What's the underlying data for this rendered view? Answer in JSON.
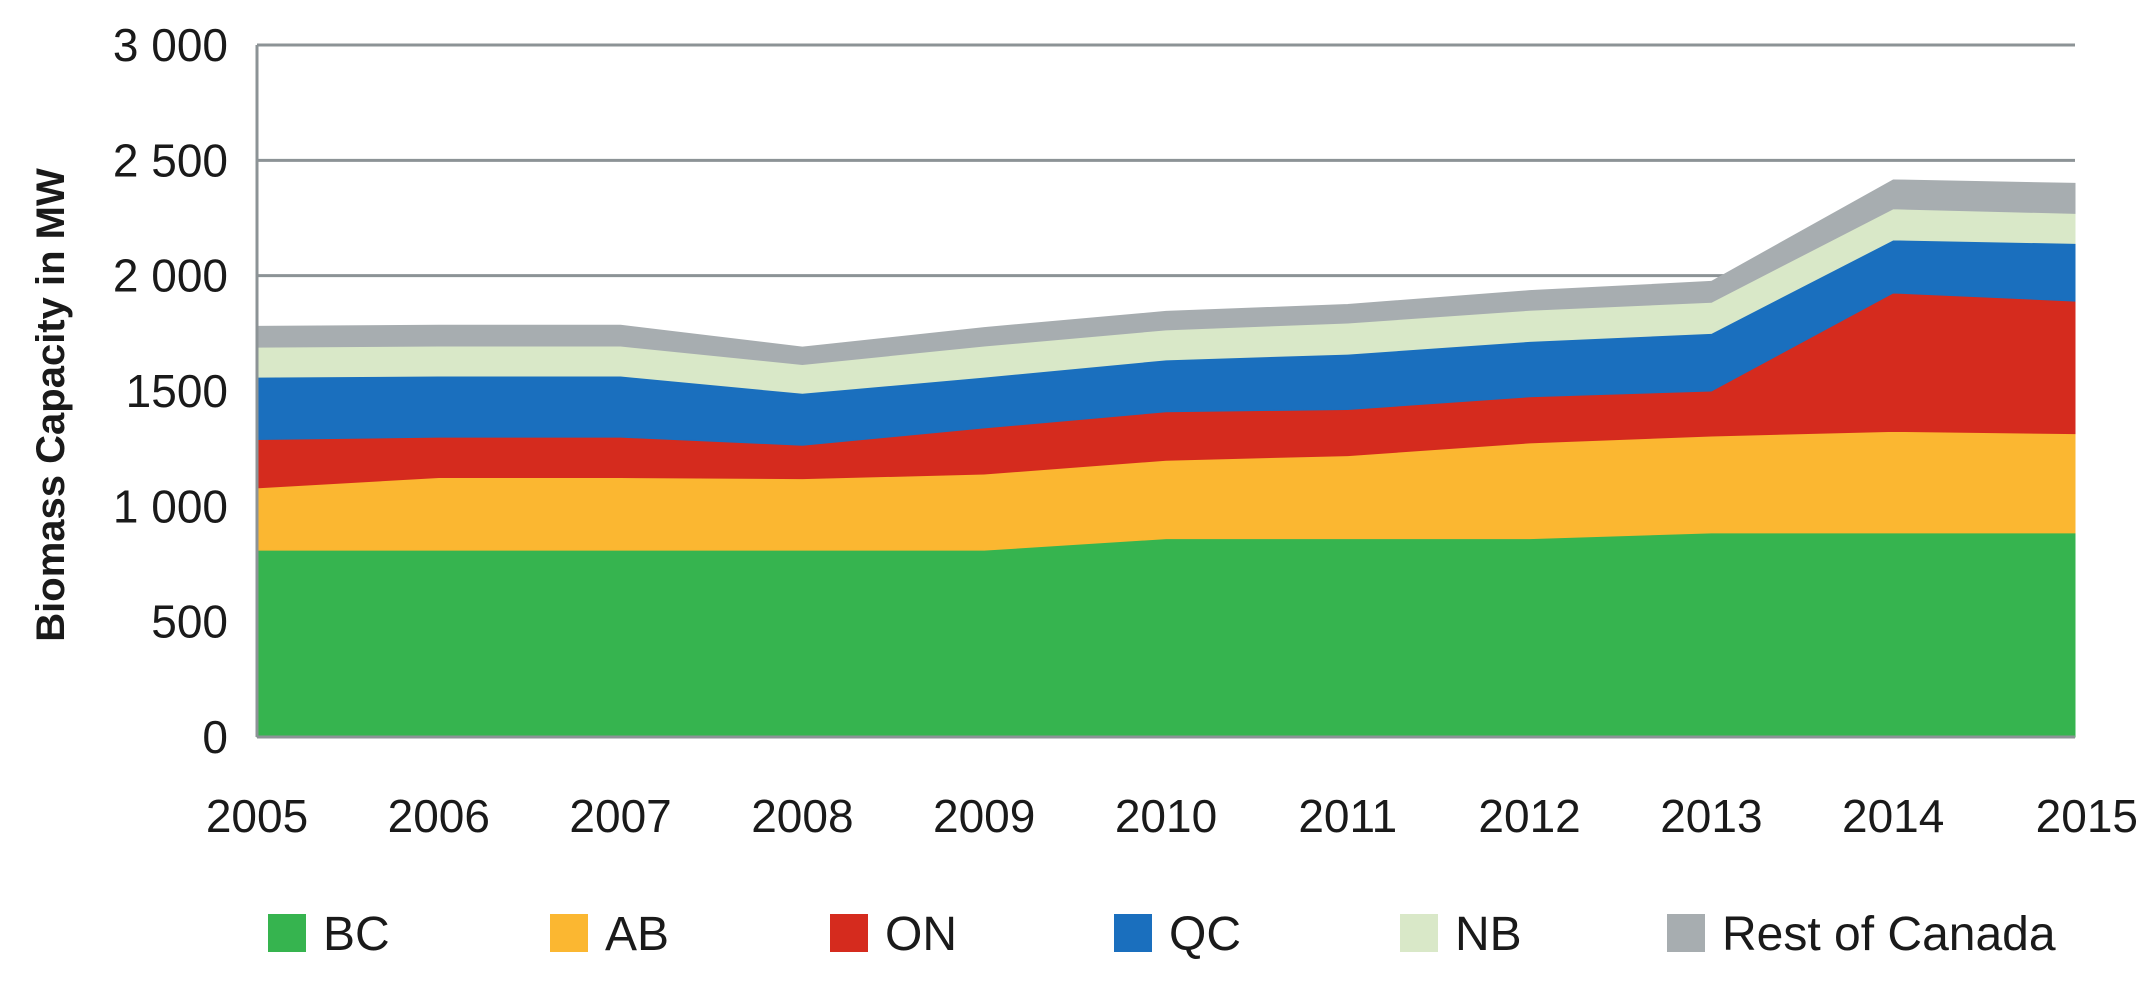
{
  "chart_data": {
    "type": "area",
    "stacked": true,
    "title": "",
    "xlabel": "",
    "ylabel": "Biomass Capacity in MW",
    "ylim": [
      0,
      3000
    ],
    "yticks": [
      0,
      500,
      1000,
      1500,
      2000,
      2500,
      3000
    ],
    "ytick_labels": [
      "0",
      "500",
      "1 000",
      "1500",
      "2 000",
      "2 500",
      "3 000"
    ],
    "grid": "horizontal",
    "legend_position": "bottom",
    "x": [
      "2005",
      "2006",
      "2007",
      "2008",
      "2009",
      "2010",
      "2011",
      "2012",
      "2013",
      "2014",
      "2015"
    ],
    "series": [
      {
        "name": "BC",
        "color": "#36b44f",
        "values": [
          810,
          810,
          810,
          810,
          810,
          860,
          860,
          860,
          885,
          885,
          885
        ]
      },
      {
        "name": "AB",
        "color": "#fbb731",
        "values": [
          270,
          315,
          315,
          310,
          330,
          340,
          360,
          415,
          420,
          440,
          430
        ]
      },
      {
        "name": "ON",
        "color": "#d52b1e",
        "values": [
          210,
          175,
          175,
          145,
          200,
          210,
          200,
          200,
          195,
          600,
          575
        ]
      },
      {
        "name": "QC",
        "color": "#1a6fbe",
        "values": [
          270,
          265,
          265,
          225,
          220,
          225,
          240,
          240,
          250,
          230,
          250
        ]
      },
      {
        "name": "NB",
        "color": "#d9e8c8",
        "values": [
          130,
          130,
          130,
          125,
          135,
          130,
          135,
          135,
          135,
          135,
          130
        ]
      },
      {
        "name": "Rest of Canada",
        "color": "#a7adb0",
        "values": [
          90,
          90,
          90,
          75,
          80,
          80,
          80,
          85,
          90,
          125,
          130
        ]
      }
    ]
  }
}
